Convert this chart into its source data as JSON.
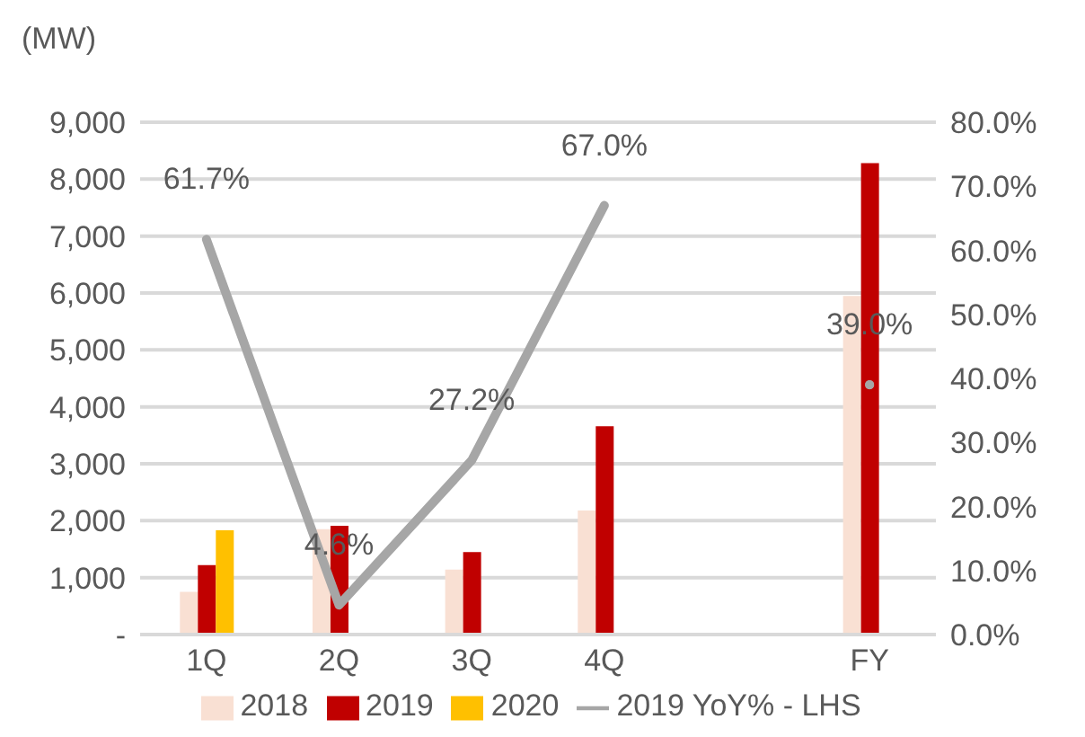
{
  "chart_data": {
    "type": "bar",
    "ylabel": "(MW)",
    "categories": [
      "1Q",
      "2Q",
      "3Q",
      "4Q",
      null,
      "FY"
    ],
    "series": [
      {
        "name": "2018",
        "color": "#f9e0d3",
        "values": [
          750,
          1850,
          1140,
          2180,
          null,
          5950
        ]
      },
      {
        "name": "2019",
        "color": "#c00000",
        "values": [
          1220,
          1910,
          1450,
          3660,
          null,
          8280
        ]
      },
      {
        "name": "2020",
        "color": "#ffc000",
        "values": [
          1830,
          null,
          null,
          null,
          null,
          null
        ]
      },
      {
        "name": "2019 YoY% - LHS",
        "type": "line",
        "axis": "y2",
        "color": "#a6a6a6",
        "values": [
          61.7,
          4.6,
          27.2,
          67.0,
          null,
          39.0
        ],
        "value_labels": [
          "61.7%",
          "4.6%",
          "27.2%",
          "67.0%",
          null,
          "39.0%"
        ]
      }
    ],
    "ylim": [
      0,
      9000
    ],
    "yticks": [
      {
        "value": 0,
        "label": "-"
      },
      {
        "value": 1000,
        "label": "1,000"
      },
      {
        "value": 2000,
        "label": "2,000"
      },
      {
        "value": 3000,
        "label": "3,000"
      },
      {
        "value": 4000,
        "label": "4,000"
      },
      {
        "value": 5000,
        "label": "5,000"
      },
      {
        "value": 6000,
        "label": "6,000"
      },
      {
        "value": 7000,
        "label": "7,000"
      },
      {
        "value": 8000,
        "label": "8,000"
      },
      {
        "value": 9000,
        "label": "9,000"
      }
    ],
    "y2lim": [
      0,
      80
    ],
    "y2ticks": [
      {
        "value": 0,
        "label": "0.0%"
      },
      {
        "value": 10,
        "label": "10.0%"
      },
      {
        "value": 20,
        "label": "20.0%"
      },
      {
        "value": 30,
        "label": "30.0%"
      },
      {
        "value": 40,
        "label": "40.0%"
      },
      {
        "value": 50,
        "label": "50.0%"
      },
      {
        "value": 60,
        "label": "60.0%"
      },
      {
        "value": 70,
        "label": "70.0%"
      },
      {
        "value": 80,
        "label": "80.0%"
      }
    ],
    "grid": "y",
    "legend": "bottom",
    "marker": "none",
    "line_style": "solid"
  }
}
